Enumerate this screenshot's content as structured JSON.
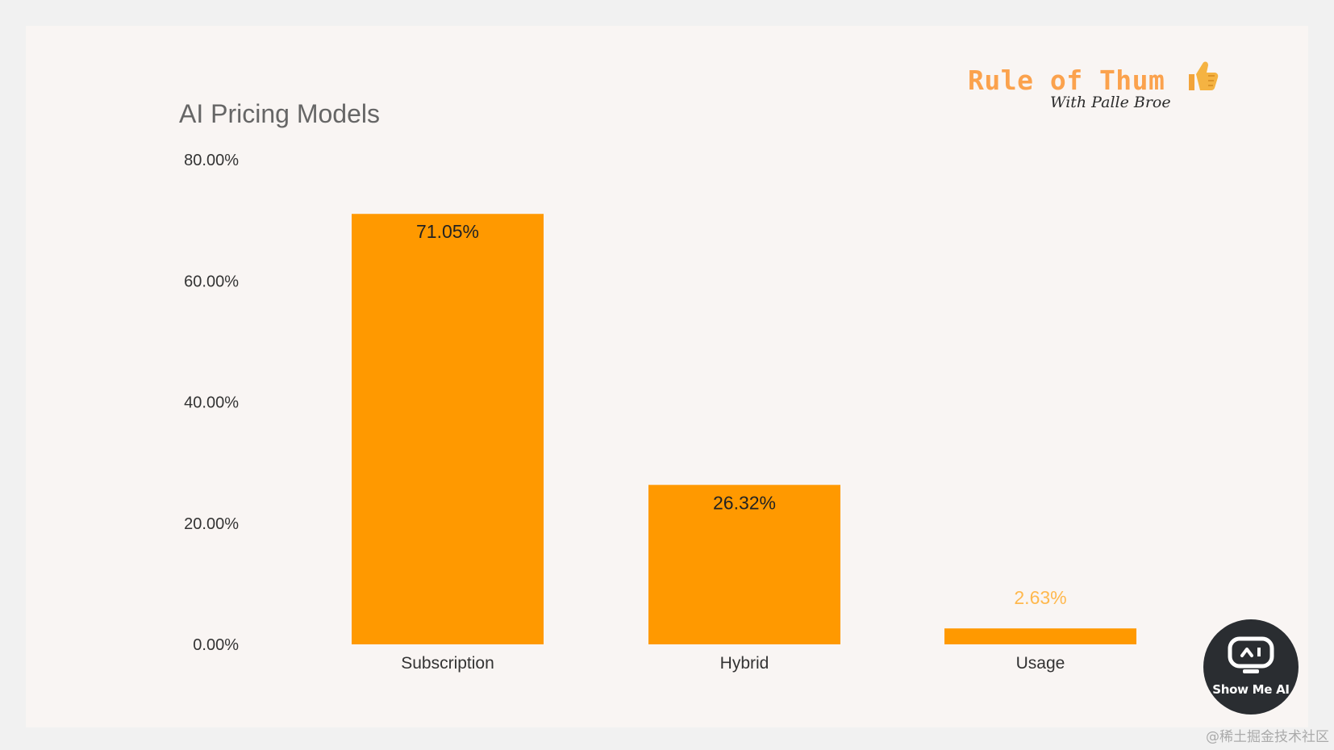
{
  "brand": {
    "title": "Rule of Thum",
    "thumb_icon": "thumbs-up-icon",
    "subtitle": "With Palle Broe"
  },
  "badge": {
    "icon": "robot-face-icon",
    "label": "Show Me AI"
  },
  "watermark": "@稀土掘金技术社区",
  "colors": {
    "bar": "#ff9900",
    "brand": "#fba24d",
    "title_text": "#666666",
    "axis_text": "#333333",
    "small_label": "#ffb84d"
  },
  "chart_data": {
    "type": "bar",
    "title": "AI Pricing Models",
    "xlabel": "",
    "ylabel": "",
    "categories": [
      "Subscription",
      "Hybrid",
      "Usage"
    ],
    "values": [
      71.05,
      26.32,
      2.63
    ],
    "data_labels": [
      "71.05%",
      "26.32%",
      "2.63%"
    ],
    "ylim": [
      0,
      80
    ],
    "yticks": [
      0,
      20,
      40,
      60,
      80
    ],
    "ytick_labels": [
      "0.00%",
      "20.00%",
      "40.00%",
      "60.00%",
      "80.00%"
    ],
    "grid": false,
    "legend": "none"
  }
}
